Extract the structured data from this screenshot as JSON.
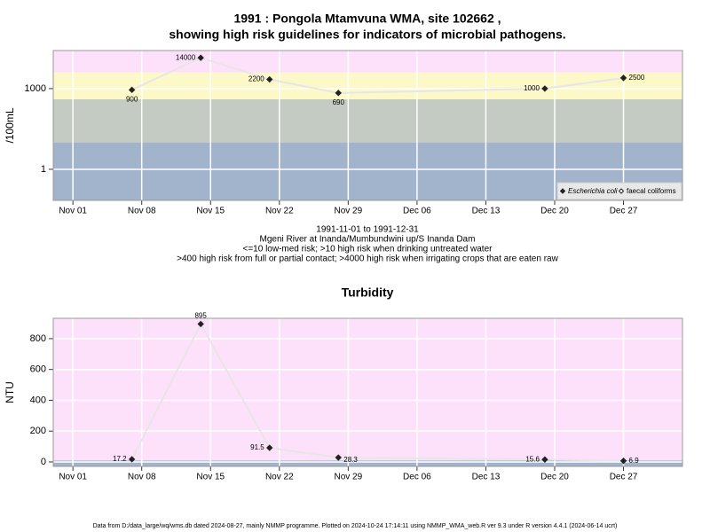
{
  "chart_data": [
    {
      "type": "line",
      "title": [
        "1991 : Pongola Mtamvuna WMA, site 102662 ,",
        "showing high risk guidelines for indicators of microbial pathogens."
      ],
      "y_label": "/100mL",
      "log_y": true,
      "grid": true,
      "legend": "bottom right",
      "x": [
        "Nov 07",
        "Nov 14",
        "Nov 21",
        "Nov 28",
        "Dec 19",
        "Dec 27"
      ],
      "series": [
        {
          "name": "Escherichia coli",
          "color": "#222222",
          "marker": "filled",
          "values": [
            900,
            14000,
            2200,
            690,
            1000,
            2500
          ]
        },
        {
          "name": "faecal coliforms",
          "color": "#222222",
          "marker": "open",
          "values": [
            null,
            null,
            null,
            null,
            null,
            null
          ]
        }
      ],
      "xlim": [
        "Oct 30",
        "Jan 02"
      ],
      "xticks": [
        "Nov 01",
        "Nov 08",
        "Nov 15",
        "Nov 22",
        "Nov 29",
        "Dec 06",
        "Dec 13",
        "Dec 20",
        "Dec 27"
      ],
      "ylim": [
        0.07,
        26000
      ],
      "yticks": [
        1,
        1000
      ],
      "bands": [
        {
          "max": 10,
          "color": "#a2b4cc"
        },
        {
          "max": 400,
          "color": "#c3cbc2"
        },
        {
          "max": 4000,
          "color": "#fdf8c8"
        },
        {
          "color": "#fde1fa"
        }
      ],
      "notes": [
        "1991-11-01 to 1991-12-31",
        "Mgeni River at Inanda/Mumbundwini up/S Inanda Dam",
        "<=10 low-med risk; >10 high risk when drinking untreated water",
        ">400 high risk from full or partial contact; >4000 high risk when irrigating crops that are eaten raw"
      ]
    },
    {
      "type": "line",
      "title": [
        "Turbidity"
      ],
      "y_label": "NTU",
      "log_y": false,
      "grid": true,
      "x": [
        "Nov 07",
        "Nov 14",
        "Nov 21",
        "Nov 28",
        "Dec 19",
        "Dec 27"
      ],
      "series": [
        {
          "name": "Turbidity",
          "color": "#222222",
          "marker": "filled",
          "values": [
            17.2,
            895,
            91.5,
            28.3,
            15.6,
            6.9
          ]
        }
      ],
      "xlim": [
        "Oct 30",
        "Jan 02"
      ],
      "xticks": [
        "Nov 01",
        "Nov 08",
        "Nov 15",
        "Nov 22",
        "Nov 29",
        "Dec 06",
        "Dec 13",
        "Dec 20",
        "Dec 27"
      ],
      "ylim": [
        -29,
        932
      ],
      "yticks": [
        0,
        200,
        400,
        600,
        800
      ],
      "bands": [
        {
          "max": 10,
          "color": "#a2b4cc"
        },
        {
          "color": "#fde1fa"
        }
      ]
    }
  ],
  "footer": "Data from D:/data_large/wq/wms.db dated 2024-08-27, mainly NMMP programme. Plotted on 2024-10-24 17:14:11 using NMMP_WMA_web.R ver 9.3 under R version 4.4.1 (2024-06-14 ucrt)"
}
